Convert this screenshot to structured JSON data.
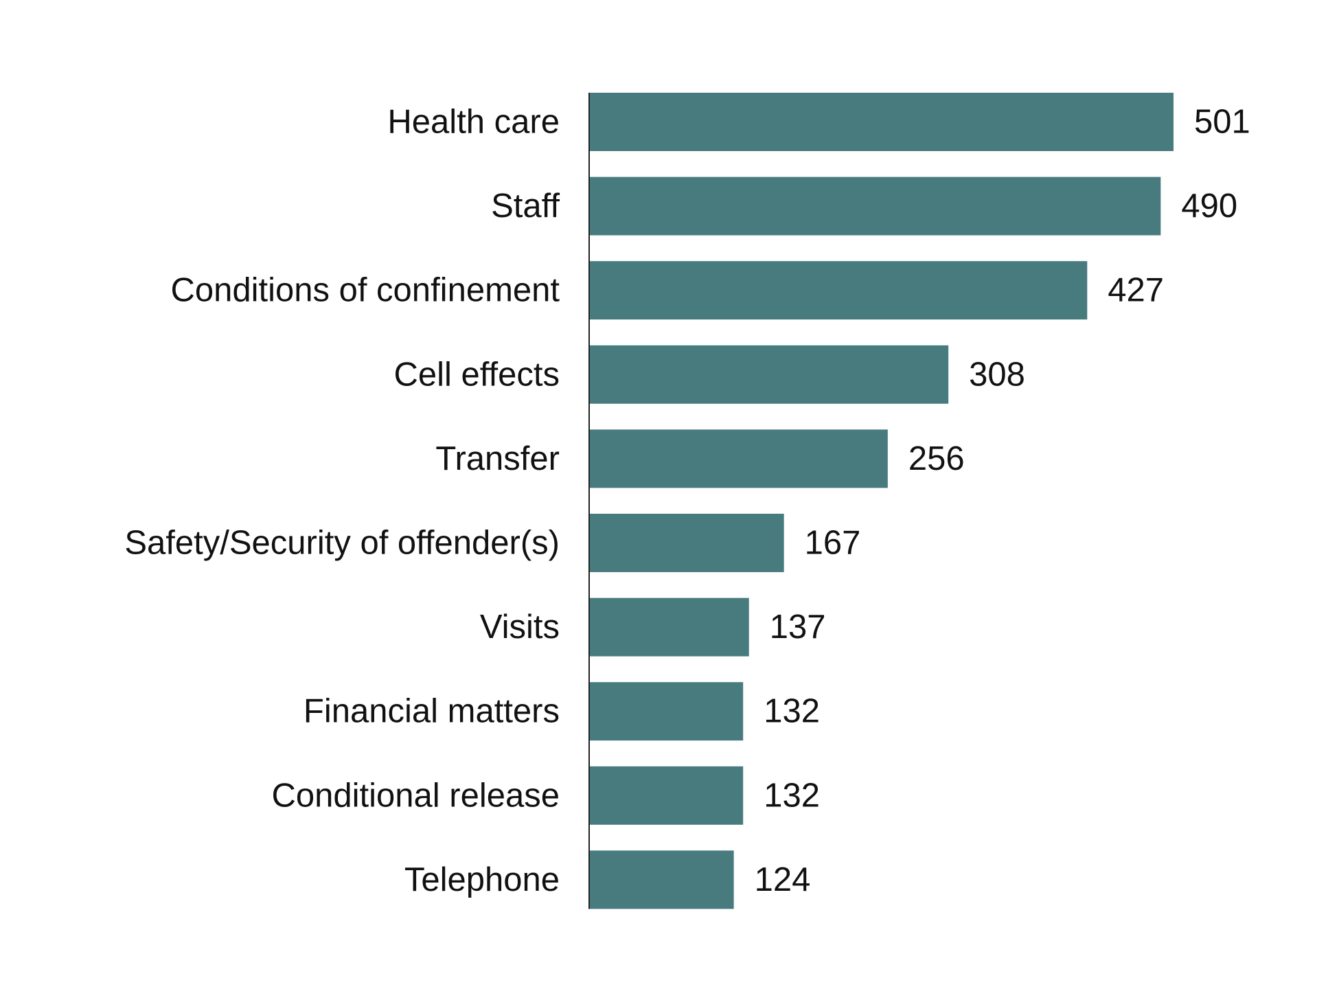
{
  "chart_data": {
    "type": "bar",
    "orientation": "horizontal",
    "title": "",
    "xlabel": "",
    "ylabel": "",
    "categories": [
      "Health care",
      "Staff",
      "Conditions of confinement",
      "Cell effects",
      "Transfer",
      "Safety/Security of offender(s)",
      "Visits",
      "Financial matters",
      "Conditional release",
      "Telephone"
    ],
    "values": [
      501,
      490,
      427,
      308,
      256,
      167,
      137,
      132,
      132,
      124
    ],
    "value_labels": [
      "501",
      "490",
      "427",
      "308",
      "256",
      "167",
      "137",
      "132",
      "132",
      "124"
    ],
    "xlim": [
      0,
      501
    ],
    "grid": false,
    "legend": "none",
    "bar_color": "#477B7E",
    "axis_color": "#222222"
  }
}
